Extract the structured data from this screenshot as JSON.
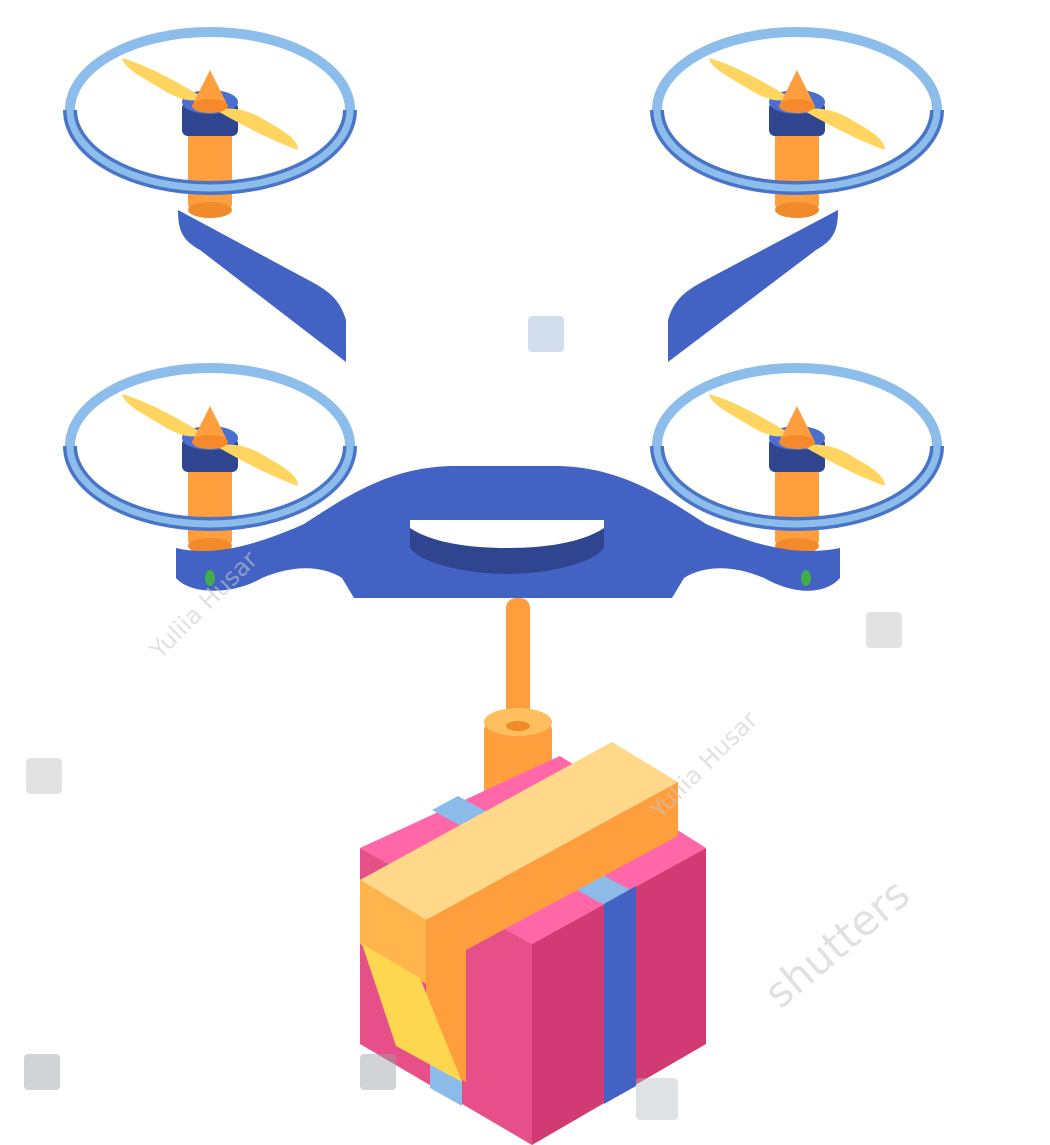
{
  "illustration": {
    "subject": "isometric delivery drone carrying a gift box",
    "colors": {
      "frame_blue": "#4263c4",
      "frame_dark": "#2f4590",
      "guard_blue": "#8dbdea",
      "guard_dark": "#4a74c9",
      "propeller_yellow": "#ffd560",
      "motor_orange": "#ff9e3c",
      "motor_navy": "#2f4590",
      "led_green": "#3fae49",
      "box_pink_light": "#ff67a8",
      "box_pink_mid": "#e64f87",
      "box_pink_dark": "#d13a72",
      "ribbon_blue": "#4263c4",
      "ribbon_light": "#8cbbea",
      "tape_light": "#ffd88a",
      "tape_mid": "#ffb54c",
      "tape_yellow": "#ffd650"
    }
  },
  "watermarks": {
    "author": "Yuliia Husar",
    "brand": "shutters",
    "logo_icon": "shutterstock-logo-icon"
  }
}
